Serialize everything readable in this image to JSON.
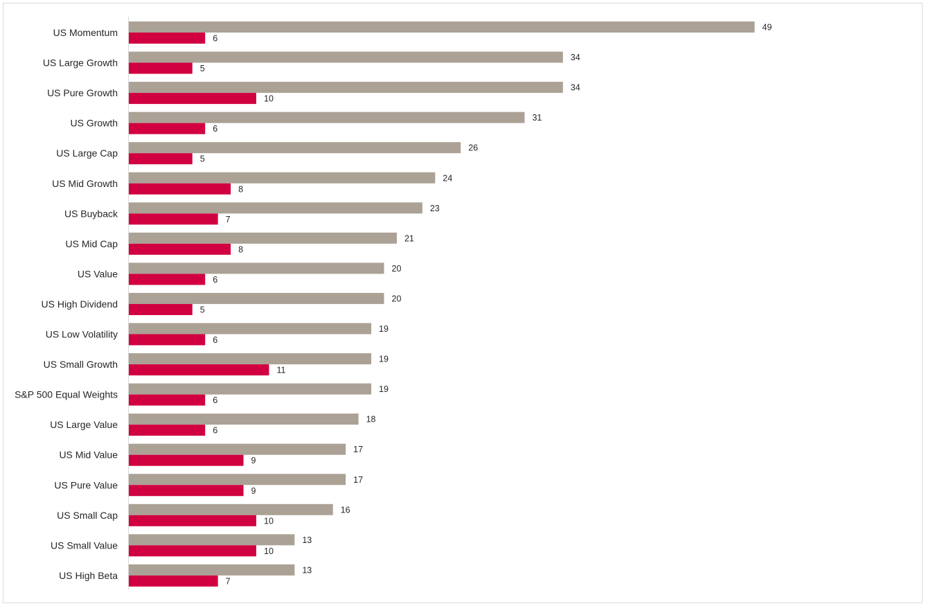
{
  "chart_data": {
    "type": "bar",
    "orientation": "horizontal",
    "title": "",
    "xlabel": "",
    "ylabel": "",
    "grid": false,
    "legend": "none",
    "xlim": [
      0,
      50
    ],
    "categories": [
      "US Momentum",
      "US Large Growth",
      "US Pure Growth",
      "US Growth",
      "US Large Cap",
      "US Mid Growth",
      "US Buyback",
      "US Mid Cap",
      "US Value",
      "US High Dividend",
      "US Low Volatility",
      "US Small Growth",
      "S&P 500 Equal Weights",
      "US Large Value",
      "US Mid Value",
      "US Pure Value",
      "US Small Cap",
      "US Small Value",
      "US High Beta"
    ],
    "series": [
      {
        "color": "#aba195",
        "values": [
          49,
          34,
          34,
          31,
          26,
          24,
          23,
          21,
          20,
          20,
          19,
          19,
          19,
          18,
          17,
          17,
          16,
          13,
          13
        ]
      },
      {
        "color": "#d10040",
        "values": [
          6,
          5,
          10,
          6,
          5,
          8,
          7,
          8,
          6,
          5,
          6,
          11,
          6,
          6,
          9,
          9,
          10,
          10,
          7
        ]
      }
    ],
    "axis_color": "#d9d9d9",
    "text_color": "#262626"
  }
}
